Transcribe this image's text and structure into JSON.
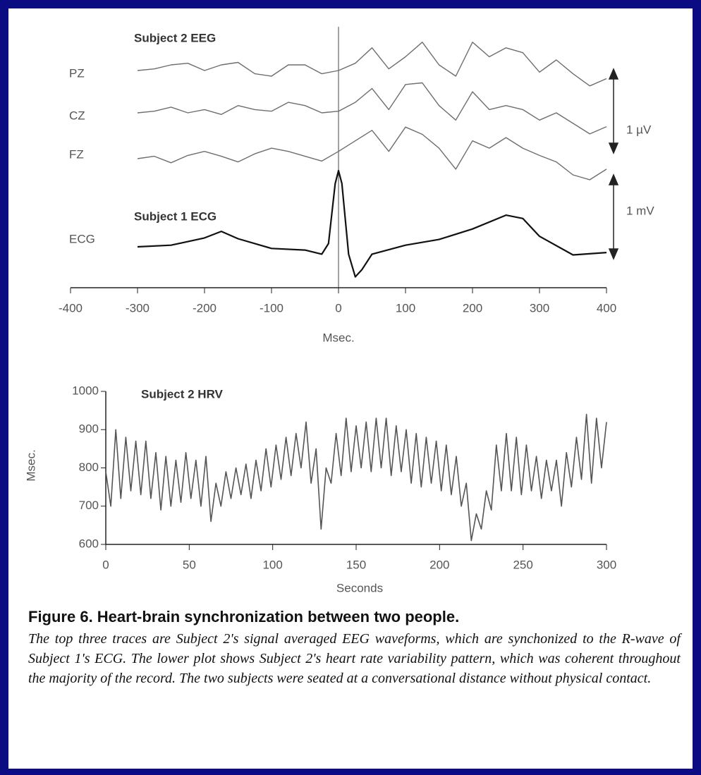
{
  "chart_data": [
    {
      "type": "line",
      "title": "Subject 2 EEG",
      "xlabel": "Msec.",
      "xlim": [
        -400,
        400
      ],
      "xticks": [
        -400,
        -300,
        -200,
        -100,
        0,
        100,
        200,
        300,
        400
      ],
      "annotations": [
        "Subject 1 ECG",
        "1 µV",
        "1 mV"
      ],
      "series": [
        {
          "name": "PZ",
          "color": "#6e6e6e",
          "x": [
            -300,
            -275,
            -250,
            -225,
            -200,
            -175,
            -150,
            -125,
            -100,
            -75,
            -50,
            -25,
            0,
            25,
            50,
            75,
            100,
            125,
            150,
            175,
            200,
            225,
            250,
            275,
            300,
            325,
            350,
            375,
            400
          ],
          "values": [
            0,
            0.02,
            0.07,
            0.09,
            0,
            0.07,
            0.1,
            -0.04,
            -0.07,
            0.07,
            0.07,
            -0.04,
            0,
            0.09,
            0.28,
            0.02,
            0.17,
            0.35,
            0.07,
            -0.07,
            0.35,
            0.17,
            0.28,
            0.22,
            -0.02,
            0.13,
            -0.04,
            -0.19,
            -0.1
          ]
        },
        {
          "name": "CZ",
          "color": "#6e6e6e",
          "x": [
            -300,
            -275,
            -250,
            -225,
            -200,
            -175,
            -150,
            -125,
            -100,
            -75,
            -50,
            -25,
            0,
            25,
            50,
            75,
            100,
            125,
            150,
            175,
            200,
            225,
            250,
            275,
            300,
            325,
            350,
            375,
            400
          ],
          "values": [
            0,
            0.02,
            0.07,
            0,
            0.04,
            -0.02,
            0.09,
            0.04,
            0.02,
            0.13,
            0.09,
            0,
            0.02,
            0.13,
            0.3,
            0.04,
            0.35,
            0.37,
            0.09,
            -0.09,
            0.26,
            0.04,
            0.09,
            0.04,
            -0.09,
            0,
            -0.13,
            -0.26,
            -0.17
          ]
        },
        {
          "name": "FZ",
          "color": "#6e6e6e",
          "x": [
            -300,
            -275,
            -250,
            -225,
            -200,
            -175,
            -150,
            -125,
            -100,
            -75,
            -50,
            -25,
            0,
            25,
            50,
            75,
            100,
            125,
            150,
            175,
            200,
            225,
            250,
            275,
            300,
            325,
            350,
            375,
            400
          ],
          "values": [
            0,
            0.03,
            -0.05,
            0.04,
            0.09,
            0.03,
            -0.04,
            0.06,
            0.13,
            0.09,
            0.03,
            -0.03,
            0.09,
            0.22,
            0.35,
            0.09,
            0.39,
            0.3,
            0.13,
            -0.13,
            0.22,
            0.13,
            0.26,
            0.13,
            0.04,
            -0.04,
            -0.2,
            -0.26,
            -0.13
          ]
        },
        {
          "name": "ECG",
          "color": "#111111",
          "x": [
            -300,
            -250,
            -200,
            -175,
            -150,
            -100,
            -50,
            -25,
            -15,
            -5,
            0,
            5,
            15,
            25,
            35,
            50,
            100,
            150,
            200,
            250,
            275,
            300,
            350,
            400
          ],
          "values": [
            0,
            0.02,
            0.11,
            0.19,
            0.1,
            -0.02,
            -0.04,
            -0.09,
            0.04,
            0.78,
            0.94,
            0.78,
            -0.09,
            -0.37,
            -0.28,
            -0.09,
            0.02,
            0.09,
            0.22,
            0.39,
            0.35,
            0.13,
            -0.1,
            -0.07
          ]
        }
      ]
    },
    {
      "type": "line",
      "title": "Subject 2 HRV",
      "xlabel": "Seconds",
      "ylabel": "Msec.",
      "xlim": [
        0,
        300
      ],
      "xticks": [
        0,
        50,
        100,
        150,
        200,
        250,
        300
      ],
      "ylim": [
        600,
        1000
      ],
      "yticks": [
        600,
        700,
        800,
        900,
        1000
      ],
      "series": [
        {
          "name": "HRV",
          "color": "#555555",
          "x": [
            0,
            3,
            6,
            9,
            12,
            15,
            18,
            21,
            24,
            27,
            30,
            33,
            36,
            39,
            42,
            45,
            48,
            51,
            54,
            57,
            60,
            63,
            66,
            69,
            72,
            75,
            78,
            81,
            84,
            87,
            90,
            93,
            96,
            99,
            102,
            105,
            108,
            111,
            114,
            117,
            120,
            123,
            126,
            129,
            132,
            135,
            138,
            141,
            144,
            147,
            150,
            153,
            156,
            159,
            162,
            165,
            168,
            171,
            174,
            177,
            180,
            183,
            186,
            189,
            192,
            195,
            198,
            201,
            204,
            207,
            210,
            213,
            216,
            219,
            222,
            225,
            228,
            231,
            234,
            237,
            240,
            243,
            246,
            249,
            252,
            255,
            258,
            261,
            264,
            267,
            270,
            273,
            276,
            279,
            282,
            285,
            288,
            291,
            294,
            297,
            300
          ],
          "values": [
            790,
            700,
            900,
            720,
            880,
            740,
            870,
            730,
            870,
            720,
            840,
            690,
            830,
            700,
            820,
            710,
            840,
            720,
            820,
            700,
            830,
            660,
            760,
            700,
            790,
            720,
            800,
            730,
            810,
            720,
            820,
            740,
            850,
            750,
            860,
            770,
            880,
            780,
            890,
            800,
            920,
            760,
            850,
            640,
            800,
            760,
            890,
            780,
            930,
            790,
            910,
            800,
            920,
            790,
            930,
            800,
            930,
            780,
            910,
            790,
            900,
            760,
            890,
            750,
            880,
            760,
            870,
            740,
            860,
            730,
            830,
            700,
            760,
            610,
            680,
            640,
            740,
            690,
            860,
            740,
            890,
            740,
            880,
            730,
            860,
            740,
            830,
            720,
            820,
            740,
            820,
            700,
            840,
            750,
            880,
            770,
            940,
            760,
            930,
            800,
            920
          ]
        }
      ]
    }
  ],
  "caption": {
    "title": "Figure 6. Heart-brain synchronization between two people.",
    "text": "The top three traces are Subject 2's signal averaged EEG waveforms, which are synchonized to the R-wave of Subject 1's ECG. The lower plot shows Subject 2's heart rate variability pattern, which was coherent throughout the majority of the record. The two subjects were seated at a conversational distance without physical contact."
  }
}
